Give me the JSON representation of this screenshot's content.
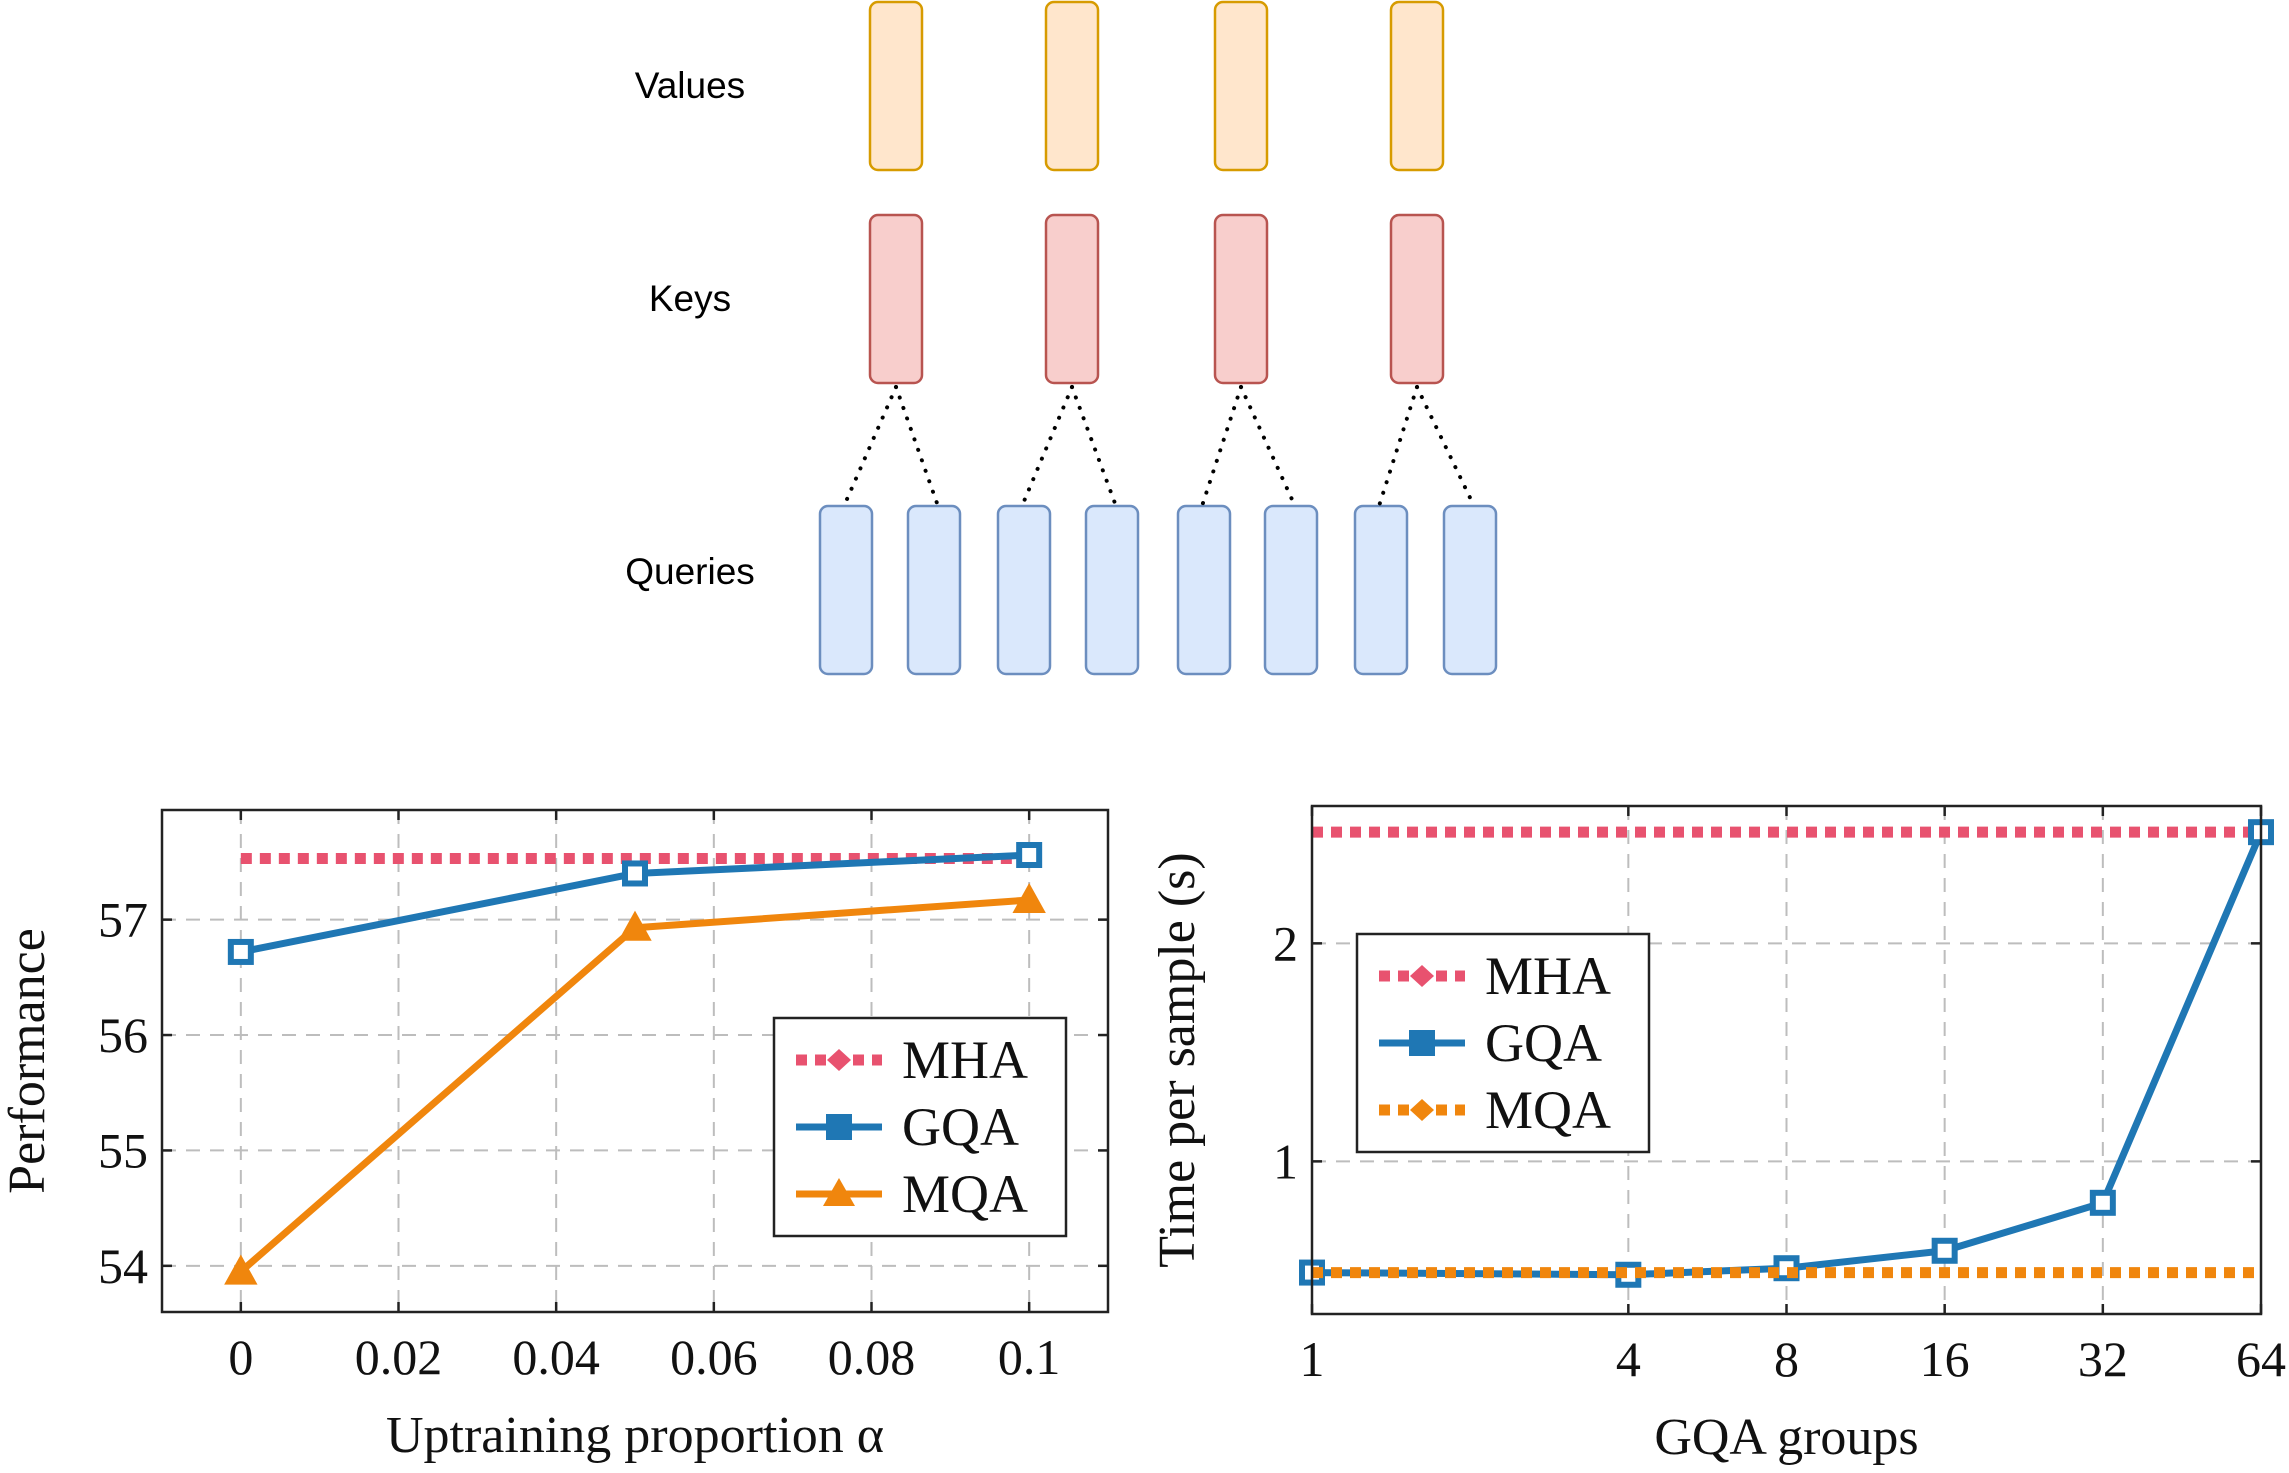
{
  "colors": {
    "mha": "#e8526f",
    "gqa": "#1f77b4",
    "mqa": "#f0860d",
    "values_fill": "#ffe6cc",
    "values_stroke": "#d79b00",
    "keys_fill": "#f8cecc",
    "keys_stroke": "#b85450",
    "queries_fill": "#dae8fc",
    "queries_stroke": "#6c8ebf"
  },
  "diagram": {
    "rows": [
      {
        "label": "Values",
        "count": 4
      },
      {
        "label": "Keys",
        "count": 4
      },
      {
        "label": "Queries",
        "count": 8
      }
    ],
    "queries_per_key": 2
  },
  "chart_data": [
    {
      "type": "line",
      "title": "",
      "xlabel": "Uptraining proportion α",
      "ylabel": "Performance",
      "xlim": [
        -0.01,
        0.11
      ],
      "ylim": [
        53.6,
        57.95
      ],
      "xticks": [
        0,
        0.02,
        0.04,
        0.06,
        0.08,
        0.1
      ],
      "xtick_labels": [
        "0",
        "0.02",
        "0.04",
        "0.06",
        "0.08",
        "0.1"
      ],
      "yticks": [
        54,
        55,
        56,
        57
      ],
      "ytick_labels": [
        "54",
        "55",
        "56",
        "57"
      ],
      "grid": true,
      "legend_position": "lower-right",
      "series": [
        {
          "name": "MHA",
          "x": [
            0,
            0.1
          ],
          "y": [
            57.53,
            57.53
          ],
          "style": "dotted",
          "marker": "diamond"
        },
        {
          "name": "GQA",
          "x": [
            0,
            0.05,
            0.1
          ],
          "y": [
            56.72,
            57.4,
            57.56
          ],
          "style": "solid",
          "marker": "square"
        },
        {
          "name": "MQA",
          "x": [
            0,
            0.05,
            0.1
          ],
          "y": [
            53.95,
            56.93,
            57.17
          ],
          "style": "solid",
          "marker": "triangle"
        }
      ]
    },
    {
      "type": "line",
      "title": "",
      "xlabel": "GQA groups",
      "ylabel": "Time per sample (s)",
      "xscale": "log2",
      "xlim": [
        1,
        64
      ],
      "ylim": [
        0.3,
        2.63
      ],
      "xticks": [
        1,
        4,
        8,
        16,
        32,
        64
      ],
      "xtick_labels": [
        "1",
        "4",
        "8",
        "16",
        "32",
        "64"
      ],
      "yticks": [
        1,
        2
      ],
      "ytick_labels": [
        "1",
        "2"
      ],
      "grid": true,
      "legend_position": "top-left",
      "series": [
        {
          "name": "MHA",
          "x": [
            1,
            64
          ],
          "y": [
            2.51,
            2.51
          ],
          "style": "dotted",
          "marker": "diamond"
        },
        {
          "name": "GQA",
          "x": [
            1,
            4,
            8,
            16,
            32,
            64
          ],
          "y": [
            0.49,
            0.48,
            0.51,
            0.59,
            0.81,
            2.51
          ],
          "style": "solid",
          "marker": "square"
        },
        {
          "name": "MQA",
          "x": [
            1,
            64
          ],
          "y": [
            0.49,
            0.49
          ],
          "style": "dotted",
          "marker": "diamond"
        }
      ]
    }
  ]
}
